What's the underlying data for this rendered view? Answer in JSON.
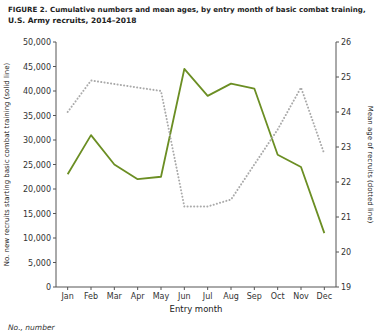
{
  "chart_data": {
    "type": "line",
    "title": "FIGURE 2.  Cumulative numbers and mean ages, by entry month of basic combat training,",
    "subtitle": "U.S. Army recruits, 2014–2018",
    "annotations": [
      "No., number"
    ],
    "xlabel": "Entry month",
    "ylabel": "No. new recruits starting basic combat training (solid line)",
    "y2label": "Mean age of recruits (dotted line)",
    "categories": [
      "Jan",
      "Feb",
      "Mar",
      "Apr",
      "May",
      "Jun",
      "Jul",
      "Aug",
      "Sep",
      "Oct",
      "Nov",
      "Dec"
    ],
    "series": [
      {
        "color": "#6b8e23",
        "line_style": "solid",
        "values": [
          23000,
          31000,
          25000,
          22000,
          22500,
          44500,
          39000,
          41500,
          40500,
          27000,
          24500,
          11000
        ]
      },
      {
        "color": "#aaaaaa",
        "line_style": "dotted",
        "axis": "y2",
        "values": [
          24.0,
          24.9,
          24.8,
          24.7,
          24.6,
          21.3,
          21.3,
          21.5,
          22.5,
          23.5,
          24.7,
          22.8
        ]
      }
    ],
    "ylim": [
      0,
      50000
    ],
    "yticks": [
      0,
      {
        "value": 5000,
        "label": "5,000"
      },
      {
        "value": 10000,
        "label": "10,000"
      },
      {
        "value": 15000,
        "label": "15,000"
      },
      {
        "value": 20000,
        "label": "20,000"
      },
      {
        "value": 25000,
        "label": "25,000"
      },
      {
        "value": 30000,
        "label": "30,000"
      },
      {
        "value": 35000,
        "label": "35,000"
      },
      {
        "value": 40000,
        "label": "40,000"
      },
      {
        "value": 45000,
        "label": "45,000"
      },
      {
        "value": 50000,
        "label": "50,000"
      }
    ],
    "y2lim": [
      19,
      26
    ],
    "y2ticks": [
      19,
      20,
      21,
      22,
      23,
      24,
      25,
      26
    ],
    "grid": false
  }
}
